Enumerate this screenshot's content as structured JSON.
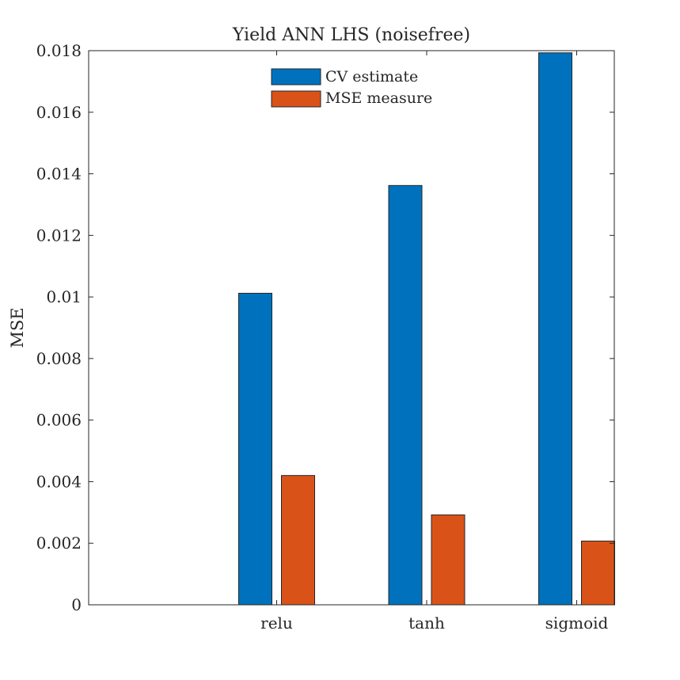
{
  "chart_data": {
    "type": "bar",
    "title": "Yield ANN LHS (noisefree)",
    "xlabel": "",
    "ylabel": "MSE",
    "categories": [
      "relu",
      "tanh",
      "sigmoid"
    ],
    "series": [
      {
        "name": "CV estimate",
        "color": "#0072BD",
        "values": [
          0.01012,
          0.01362,
          0.01793
        ]
      },
      {
        "name": "MSE measure",
        "color": "#D95319",
        "values": [
          0.0042,
          0.00292,
          0.00207
        ]
      }
    ],
    "ylim": [
      0,
      0.018
    ],
    "yticks": [
      "0",
      "0.002",
      "0.004",
      "0.006",
      "0.008",
      "0.01",
      "0.012",
      "0.014",
      "0.016",
      "0.018"
    ],
    "legend_position": "top-center",
    "grid": false
  }
}
